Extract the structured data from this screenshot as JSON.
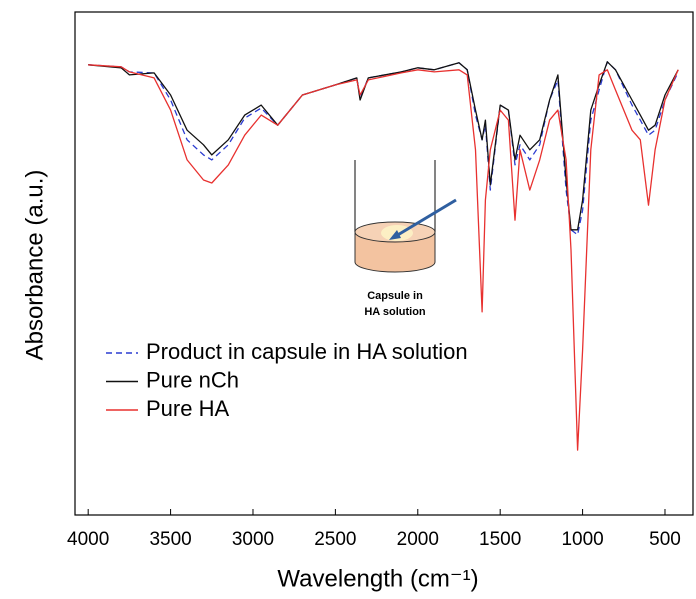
{
  "chart_data": {
    "type": "line",
    "x_label": "Wavelength (cm⁻¹)",
    "y_label": "Absorbance (a.u.)",
    "annotations": [
      "Capsule in",
      "HA solution"
    ],
    "xlim": [
      4080,
      330
    ],
    "ylim": [
      0,
      100
    ],
    "xticks": [
      4000,
      3500,
      3000,
      2500,
      2000,
      1500,
      1000,
      500
    ],
    "x": [
      4000,
      3800,
      3750,
      3600,
      3500,
      3400,
      3300,
      3250,
      3150,
      3050,
      2950,
      2850,
      2700,
      2500,
      2370,
      2350,
      2300,
      2100,
      2000,
      1900,
      1750,
      1700,
      1650,
      1610,
      1590,
      1560,
      1500,
      1450,
      1410,
      1380,
      1320,
      1260,
      1200,
      1150,
      1100,
      1070,
      1030,
      1000,
      950,
      900,
      850,
      800,
      700,
      650,
      600,
      560,
      500,
      420
    ],
    "legend": "left",
    "series": [
      {
        "name": "Product in capsule in HA solution",
        "color": "#2a3bd1",
        "dashed": true,
        "values": [
          89.5,
          89.1,
          88.1,
          87.9,
          82.5,
          74.6,
          71.6,
          70.6,
          73.6,
          78.9,
          80.9,
          77.5,
          83.5,
          85.5,
          86.9,
          82.9,
          86.9,
          88.1,
          88.9,
          88.5,
          89.9,
          88.5,
          79.5,
          74.6,
          77.5,
          64.6,
          81.5,
          80.5,
          69.6,
          73.6,
          70.6,
          73.6,
          82.5,
          86.5,
          64.6,
          56.7,
          55.7,
          60.6,
          78.5,
          84.5,
          90.1,
          88.5,
          81.5,
          78.5,
          75.5,
          76.5,
          82.5,
          88.1
        ]
      },
      {
        "name": "Pure nCh",
        "color": "#111111",
        "dashed": false,
        "values": [
          89.5,
          88.9,
          87.5,
          87.9,
          83.5,
          76.5,
          73.6,
          71.6,
          74.6,
          79.5,
          81.5,
          77.5,
          83.5,
          85.5,
          86.9,
          82.5,
          86.9,
          88.1,
          88.9,
          88.5,
          89.9,
          88.5,
          80.5,
          74.6,
          78.5,
          65.6,
          81.5,
          80.5,
          70.6,
          75.5,
          72.6,
          74.6,
          82.5,
          87.5,
          66.6,
          56.7,
          56.7,
          62.6,
          80.5,
          85.5,
          90.1,
          88.5,
          82.5,
          79.5,
          76.5,
          77.5,
          83.5,
          88.5
        ]
      },
      {
        "name": "Pure HA",
        "color": "#e8312f",
        "dashed": false,
        "values": [
          89.5,
          89.1,
          88.1,
          86.9,
          80.5,
          70.6,
          66.6,
          66.0,
          69.6,
          75.5,
          79.5,
          77.5,
          83.5,
          85.5,
          86.5,
          83.5,
          86.5,
          87.9,
          88.5,
          88.1,
          88.5,
          87.5,
          72.6,
          40.4,
          62.6,
          72.6,
          80.5,
          78.5,
          58.6,
          72.6,
          64.6,
          70.6,
          78.5,
          80.5,
          70.6,
          52.7,
          12.9,
          32.8,
          72.6,
          87.5,
          88.5,
          84.5,
          76.5,
          74.6,
          61.6,
          72.6,
          82.5,
          88.5
        ]
      }
    ]
  }
}
